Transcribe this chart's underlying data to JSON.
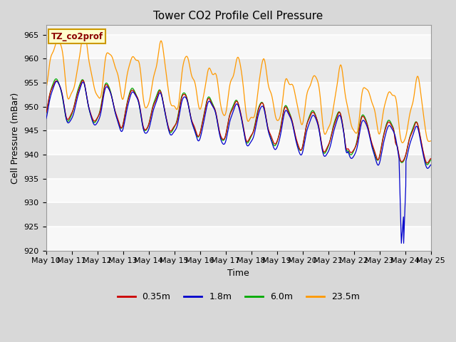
{
  "title": "Tower CO2 Profile Cell Pressure",
  "xlabel": "Time",
  "ylabel": "Cell Pressure (mBar)",
  "ylim": [
    920,
    967
  ],
  "yticks": [
    920,
    925,
    930,
    935,
    940,
    945,
    950,
    955,
    960,
    965
  ],
  "xtick_labels": [
    "May 10",
    "May 11",
    "May 12",
    "May 13",
    "May 14",
    "May 15",
    "May 16",
    "May 17",
    "May 18",
    "May 19",
    "May 20",
    "May 21",
    "May 22",
    "May 23",
    "May 24",
    "May 25"
  ],
  "colors": {
    "0.35m": "#cc0000",
    "1.8m": "#0000cc",
    "6.0m": "#00aa00",
    "23.5m": "#ff9900"
  },
  "annotation_text": "TZ_co2prof",
  "annotation_color": "#8b0000",
  "annotation_bg": "#ffffcc",
  "annotation_border": "#cc9900",
  "fig_bg": "#d8d8d8",
  "plot_bg": "#f0f0f0",
  "grid_color": "#ffffff",
  "title_fontsize": 11,
  "axis_label_fontsize": 9,
  "tick_fontsize": 8,
  "legend_fontsize": 9
}
